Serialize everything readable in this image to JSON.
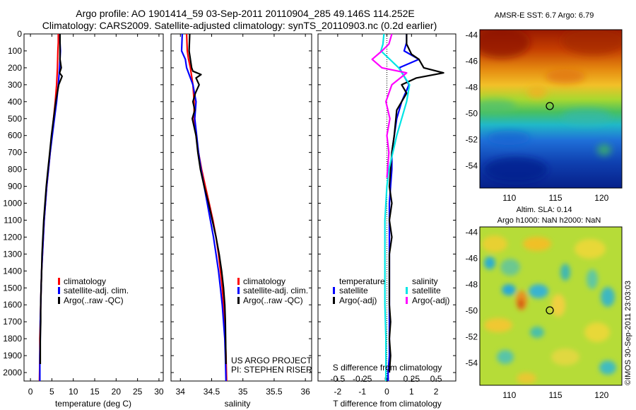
{
  "figure": {
    "title_line1": "Argo profile: AO 1901414_59 03-Sep-2011 20110904_285 49.146S 114.252E",
    "title_line2": "Climatology: CARS2009. Satellite-adjusted climatology: synTS_20110903.nc (0.2d earlier)",
    "credit_project": "US ARGO PROJECT",
    "credit_pi": "PI: STEPHEN RISER",
    "watermark": "©IMOS 30-Sep-2011 23:03:03",
    "colors": {
      "climatology": "#ff0000",
      "satellite": "#0000ff",
      "argo": "#000000",
      "s_satellite": "#00e5e5",
      "s_argo": "#ff00ff"
    }
  },
  "chart_data": [
    {
      "type": "line",
      "panel": "temperature",
      "xlabel": "temperature (deg C)",
      "ylabel": "",
      "xlim": [
        -1.5,
        31
      ],
      "ylim": [
        2050,
        0
      ],
      "xticks": [
        "0",
        "5",
        "10",
        "15",
        "20",
        "25",
        "30"
      ],
      "yticks": [
        "0",
        "100",
        "200",
        "300",
        "400",
        "500",
        "600",
        "700",
        "800",
        "900",
        "1000",
        "1100",
        "1200",
        "1300",
        "1400",
        "1500",
        "1600",
        "1700",
        "1800",
        "1900",
        "2000"
      ],
      "legend": [
        "climatology",
        "satellite-adj. clim.",
        "Argo(..raw -QC)"
      ],
      "series": [
        {
          "name": "climatology",
          "color": "#ff0000",
          "x": [
            6.5,
            6.5,
            6.4,
            6.3,
            6.1,
            5.8,
            5.4,
            5.0,
            4.6,
            4.2,
            3.8,
            3.5,
            3.2,
            3.0,
            2.8,
            2.6,
            2.5,
            2.4,
            2.3,
            2.2,
            2.2,
            2.1
          ],
          "y": [
            0,
            50,
            100,
            200,
            300,
            400,
            500,
            600,
            700,
            800,
            900,
            1000,
            1100,
            1200,
            1300,
            1400,
            1500,
            1600,
            1700,
            1800,
            1900,
            2050
          ]
        },
        {
          "name": "satellite-adj. clim.",
          "color": "#0000ff",
          "x": [
            6.9,
            6.9,
            7.0,
            6.8,
            6.5,
            6.1,
            5.6,
            5.1,
            4.6,
            4.2,
            3.8,
            3.5,
            3.2,
            3.0,
            2.8,
            2.6,
            2.5,
            2.4,
            2.3,
            2.3,
            2.2,
            2.2
          ],
          "y": [
            0,
            50,
            100,
            200,
            300,
            400,
            500,
            600,
            700,
            800,
            900,
            1000,
            1100,
            1200,
            1300,
            1400,
            1500,
            1600,
            1700,
            1800,
            1900,
            2050
          ]
        },
        {
          "name": "Argo(..raw -QC)",
          "color": "#000000",
          "x": [
            6.9,
            6.9,
            6.9,
            7.2,
            6.8,
            7.4,
            6.6,
            5.9,
            5.4,
            4.9,
            4.5,
            4.1,
            3.7,
            3.4,
            3.1,
            2.9,
            2.7,
            2.6,
            2.5,
            2.4,
            2.4,
            2.3,
            2.3
          ],
          "y": [
            0,
            50,
            150,
            200,
            230,
            250,
            300,
            400,
            500,
            600,
            700,
            800,
            900,
            1000,
            1100,
            1200,
            1300,
            1400,
            1500,
            1600,
            1700,
            1800,
            1950
          ]
        }
      ]
    },
    {
      "type": "line",
      "panel": "salinity",
      "xlabel": "salinity",
      "ylabel": "",
      "xlim": [
        33.85,
        36.1
      ],
      "ylim": [
        2050,
        0
      ],
      "xticks": [
        "34",
        "34.5",
        "35",
        "35.5",
        "36"
      ],
      "legend": [
        "climatology",
        "satellite-adj. clim.",
        "Argo(..raw -QC)"
      ],
      "series": [
        {
          "name": "climatology",
          "color": "#ff0000",
          "x": [
            34.1,
            34.11,
            34.13,
            34.16,
            34.2,
            34.22,
            34.22,
            34.25,
            34.29,
            34.34,
            34.4,
            34.46,
            34.52,
            34.57,
            34.61,
            34.64,
            34.67,
            34.69,
            34.71,
            34.72,
            34.73,
            34.74
          ],
          "y": [
            0,
            100,
            150,
            200,
            300,
            400,
            500,
            600,
            700,
            800,
            900,
            1000,
            1100,
            1200,
            1300,
            1400,
            1500,
            1600,
            1700,
            1800,
            1900,
            2050
          ]
        },
        {
          "name": "satellite-adj. clim.",
          "color": "#0000ff",
          "x": [
            34.03,
            34.02,
            34.08,
            34.1,
            34.2,
            34.25,
            34.23,
            34.26,
            34.29,
            34.33,
            34.38,
            34.43,
            34.48,
            34.53,
            34.57,
            34.61,
            34.64,
            34.67,
            34.69,
            34.71,
            34.72,
            34.73
          ],
          "y": [
            0,
            100,
            150,
            200,
            300,
            400,
            500,
            600,
            700,
            800,
            900,
            1000,
            1100,
            1200,
            1300,
            1400,
            1500,
            1600,
            1700,
            1800,
            1900,
            2050
          ]
        },
        {
          "name": "Argo(..raw -QC)",
          "color": "#000000",
          "x": [
            34.15,
            34.14,
            34.18,
            34.2,
            34.33,
            34.25,
            34.3,
            34.24,
            34.2,
            34.23,
            34.19,
            34.25,
            34.28,
            34.32,
            34.38,
            34.45,
            34.51,
            34.57,
            34.62,
            34.66,
            34.69,
            34.71,
            34.72,
            34.73
          ],
          "y": [
            0,
            100,
            200,
            220,
            240,
            260,
            300,
            350,
            400,
            450,
            500,
            600,
            700,
            800,
            900,
            1000,
            1100,
            1200,
            1300,
            1400,
            1500,
            1600,
            1700,
            1950
          ]
        }
      ]
    },
    {
      "type": "line",
      "panel": "differences",
      "xlabel": "T difference from climatology",
      "xlabel_top": "S difference from climatology",
      "ylabel": "",
      "xlim": [
        -2.8,
        2.8
      ],
      "xlim_s": [
        -0.7,
        0.7
      ],
      "ylim": [
        2050,
        0
      ],
      "xticks": [
        "-2",
        "-1",
        "0",
        "1",
        "2"
      ],
      "xticks_s": [
        "-0.5",
        "-0.25",
        "0",
        "0.25",
        "0.5"
      ],
      "legend_headers": [
        "temperature",
        "salinity"
      ],
      "legend": [
        "satellite",
        "Argo(-adj)",
        "satellite",
        "Argo(-adj)"
      ],
      "series": [
        {
          "name": "satellite",
          "quantity": "temperature",
          "color": "#0000ff",
          "x": [
            0.8,
            0.8,
            0.7,
            1.3,
            0.5,
            0.9,
            0.6,
            0.4,
            0.3,
            0.2,
            0.2,
            0.15,
            0.1,
            0.1,
            0.1,
            0.1,
            0.1,
            0.1,
            0.1,
            0.1,
            0.05,
            0.05,
            0.05
          ],
          "y": [
            0,
            50,
            100,
            150,
            200,
            300,
            400,
            500,
            600,
            700,
            800,
            900,
            1000,
            1200,
            1400,
            1500,
            1600,
            1700,
            1800,
            1900,
            2000,
            2050,
            2050
          ]
        },
        {
          "name": "Argo(-adj)",
          "quantity": "temperature",
          "color": "#000000",
          "x": [
            0.8,
            0.8,
            1.0,
            1.3,
            1.5,
            2.3,
            1.2,
            0.6,
            0.8,
            0.4,
            0.3,
            0.2,
            0.1,
            0.2,
            0.1,
            0.2,
            0.1,
            0.1,
            0.1,
            0.15,
            0.1,
            0.15,
            0.1
          ],
          "y": [
            0,
            60,
            120,
            150,
            200,
            230,
            260,
            300,
            350,
            450,
            600,
            700,
            900,
            1000,
            1100,
            1200,
            1300,
            1500,
            1600,
            1700,
            1800,
            1900,
            2000
          ]
        },
        {
          "name": "satellite",
          "quantity": "salinity",
          "color": "#00e5e5",
          "x": [
            -0.03,
            -0.04,
            -0.06,
            0.12,
            0.23,
            0.2,
            0.15,
            0.1,
            0.06,
            0.02,
            0.0,
            -0.01,
            -0.02,
            -0.02,
            -0.02,
            -0.02,
            -0.01,
            -0.01,
            -0.01
          ],
          "y": [
            0,
            60,
            100,
            200,
            300,
            400,
            500,
            600,
            700,
            800,
            900,
            1000,
            1100,
            1200,
            1400,
            1600,
            1800,
            1900,
            2050
          ]
        },
        {
          "name": "Argo(-adj)",
          "quantity": "salinity",
          "color": "#ff00ff",
          "x": [
            0.05,
            0.02,
            -0.05,
            -0.15,
            -0.05,
            0.2,
            0.05,
            -0.01,
            0.03,
            0.0,
            0.02,
            0.0
          ],
          "y": [
            0,
            60,
            100,
            150,
            200,
            230,
            300,
            400,
            500,
            600,
            700,
            850
          ]
        }
      ]
    }
  ],
  "maps": [
    {
      "panel": "sst",
      "title": "AMSR-E SST: 6.7 Argo: 6.79",
      "xticks": [
        "110",
        "115",
        "120"
      ],
      "yticks": [
        "-44",
        "-46",
        "-48",
        "-50",
        "-52",
        "-54"
      ],
      "xlim": [
        106.8,
        122.2
      ],
      "ylim": [
        -55.7,
        -43.6
      ],
      "float_position": {
        "lon": 114.252,
        "lat": -49.146
      }
    },
    {
      "panel": "sla",
      "title_line1": "Altim. SLA: 0.14",
      "title_line2": "Argo h1000: NaN h2000: NaN",
      "xticks": [
        "110",
        "115",
        "120"
      ],
      "yticks": [
        "-44",
        "-46",
        "-48",
        "-50",
        "-52",
        "-54"
      ],
      "xlim": [
        106.8,
        122.2
      ],
      "ylim": [
        -55.7,
        -43.6
      ],
      "float_position": {
        "lon": 114.252,
        "lat": -49.146
      }
    }
  ]
}
